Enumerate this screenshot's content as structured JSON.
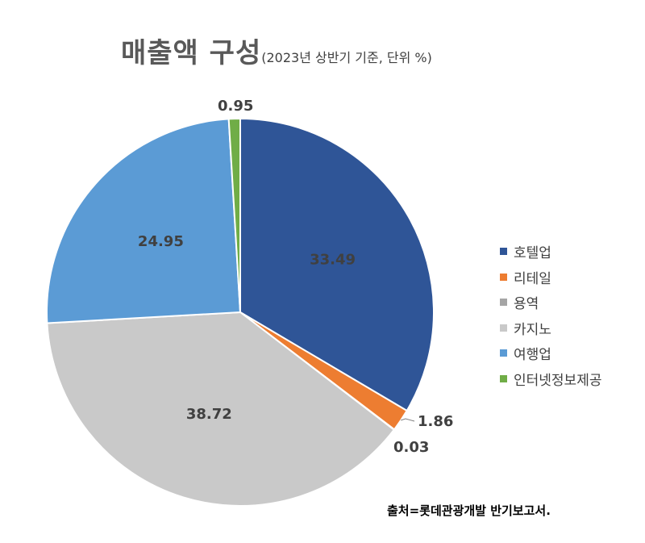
{
  "title": {
    "main": "매출액 구성",
    "sub": "(2023년 상반기 기준, 단위 %)"
  },
  "source": "출처=롯데관광개발 반기보고서.",
  "chart_data": {
    "type": "pie",
    "categories": [
      "호텔업",
      "리테일",
      "용역",
      "카지노",
      "여행업",
      "인터넷정보제공"
    ],
    "values": [
      33.49,
      1.86,
      0.03,
      38.72,
      24.95,
      0.95
    ],
    "value_labels": [
      "33.49",
      "1.86",
      "0.03",
      "38.72",
      "24.95",
      "0.95"
    ],
    "colors": [
      "#2F5597",
      "#ED7D31",
      "#A5A5A5",
      "#C9C9C9",
      "#5B9BD5",
      "#70AD47"
    ],
    "legend_position": "right",
    "start": "12 o'clock, clockwise"
  }
}
